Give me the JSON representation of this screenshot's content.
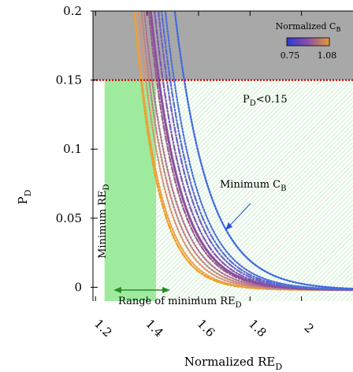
{
  "chart_data": {
    "type": "line",
    "xlabel": "Normalized RE",
    "xlabel_sub": "D",
    "ylabel": "P",
    "ylabel_sub": "D",
    "xlim": [
      1.19,
      2.2
    ],
    "ylim": [
      -0.01,
      0.2
    ],
    "x_ticks": [
      "1.2",
      "1.4",
      "1.6",
      "1.8",
      "2"
    ],
    "x_tick_values": [
      1.2,
      1.4,
      1.6,
      1.8,
      2.0
    ],
    "y_ticks": [
      "0",
      "0.05",
      "0.1",
      "0.15",
      "0.2"
    ],
    "y_tick_values": [
      0,
      0.05,
      0.1,
      0.15,
      0.2
    ],
    "threshold": {
      "value": 0.15,
      "label": "P",
      "label_sub": "D",
      "label_suffix": "<0.15",
      "color": "#cc0000"
    },
    "forbidden_region": {
      "y_from": 0.15,
      "y_to": 0.2,
      "color": "#a8a8a8"
    },
    "feasible_region": {
      "x_from": 1.235,
      "color": "#9be79b"
    },
    "minimum_re_band": {
      "x_from": 1.235,
      "x_to": 1.435,
      "color": "#8fe88f"
    },
    "colorbar": {
      "title": "Normalized C",
      "title_sub": "B",
      "min_label": "0.75",
      "max_label": "1.08",
      "colors": [
        "#2e3bd0",
        "#8a4fa8",
        "#e89a3a"
      ]
    },
    "annotations": {
      "minimum_cb": {
        "text": "Minimum C",
        "sub": "B",
        "color": "#2a4dd8"
      },
      "minimum_re": {
        "text": "Minimum RE",
        "sub": "D",
        "color": "#2a8a2a"
      },
      "range_re": {
        "text": "Range of minimum RE",
        "sub": "D",
        "color": "#2a8a2a"
      }
    },
    "series": [
      {
        "a": 1.236,
        "amp": 0.7,
        "tau": 0.092,
        "color": "#f0a020",
        "style": "dashdot",
        "width": 2.4
      },
      {
        "a": 1.245,
        "amp": 0.62,
        "tau": 0.096,
        "color": "#e8a050",
        "style": "dotted",
        "width": 2.2
      },
      {
        "a": 1.255,
        "amp": 0.62,
        "tau": 0.1,
        "color": "#d89070",
        "style": "dotted",
        "width": 2.2
      },
      {
        "a": 1.265,
        "amp": 0.6,
        "tau": 0.104,
        "color": "#c08080",
        "style": "dotted",
        "width": 2.2
      },
      {
        "a": 1.275,
        "amp": 0.58,
        "tau": 0.108,
        "color": "#b07090",
        "style": "dotted",
        "width": 2.2
      },
      {
        "a": 1.29,
        "amp": 0.58,
        "tau": 0.11,
        "color": "#9b5a8a",
        "style": "dashdot",
        "width": 2.2
      },
      {
        "a": 1.3,
        "amp": 0.56,
        "tau": 0.112,
        "color": "#8a4fa0",
        "style": "solid",
        "width": 3.0
      },
      {
        "a": 1.315,
        "amp": 0.55,
        "tau": 0.114,
        "color": "#7f55b0",
        "style": "dashdot",
        "width": 2.2
      },
      {
        "a": 1.33,
        "amp": 0.54,
        "tau": 0.116,
        "color": "#6e60c0",
        "style": "dashdot",
        "width": 2.2
      },
      {
        "a": 1.345,
        "amp": 0.52,
        "tau": 0.118,
        "color": "#5b6ad0",
        "style": "dashdot",
        "width": 2.2
      },
      {
        "a": 1.36,
        "amp": 0.51,
        "tau": 0.12,
        "color": "#4a70d8",
        "style": "dotted",
        "width": 2.2
      },
      {
        "a": 1.395,
        "amp": 0.48,
        "tau": 0.13,
        "color": "#3f6ae0",
        "style": "dotted",
        "width": 2.4
      }
    ]
  }
}
